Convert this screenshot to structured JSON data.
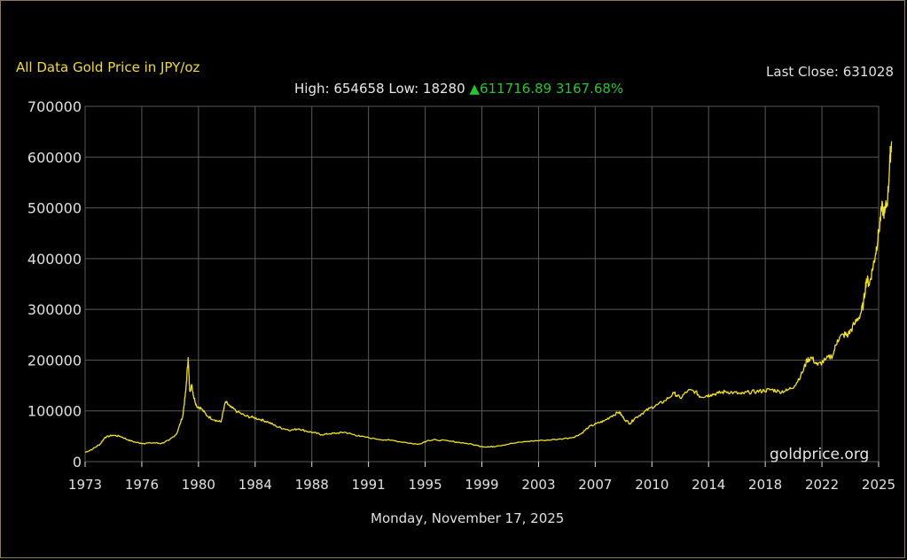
{
  "header": {
    "title": "All Data Gold Price in JPY/oz",
    "last_close": "Last Close: 631028",
    "high_label": "High:",
    "high_value": "654658",
    "low_label": "Low:",
    "low_value": "18280",
    "change_arrow": "▲",
    "change_abs": "611716.89",
    "change_pct": "3167.68%"
  },
  "watermark": "goldprice.org",
  "footer": {
    "date": "Monday, November 17, 2025"
  },
  "colors": {
    "line": "#f2e313",
    "title": "#f1dd2b",
    "up": "#22c82a",
    "grid": "#5a5a5a",
    "text": "#e0e0e0"
  },
  "chart_data": {
    "type": "line",
    "title": "All Data Gold Price in JPY/oz",
    "xlabel": "",
    "ylabel": "",
    "ylim": [
      0,
      700000
    ],
    "xlim": [
      1973,
      2025
    ],
    "grid": true,
    "legend": "none",
    "x_ticks": [
      "1973",
      "1976",
      "1980",
      "1984",
      "1988",
      "1991",
      "1995",
      "1999",
      "2003",
      "2007",
      "2010",
      "2014",
      "2018",
      "2022",
      "2025"
    ],
    "y_ticks": [
      "0",
      "100000",
      "200000",
      "300000",
      "400000",
      "500000",
      "600000",
      "700000"
    ],
    "series": [
      {
        "x": [
          1973.0,
          1973.5,
          1974.0,
          1974.3,
          1974.8,
          1975.3,
          1975.8,
          1976.3,
          1976.8,
          1977.5,
          1978.0,
          1978.5,
          1979.0,
          1979.4,
          1979.6,
          1979.75,
          1979.85,
          1980.0,
          1980.1,
          1980.3,
          1980.6,
          1981.0,
          1981.5,
          1981.9,
          1982.2,
          1982.5,
          1983.0,
          1983.5,
          1984.0,
          1984.5,
          1985.0,
          1985.5,
          1986.0,
          1986.5,
          1987.0,
          1987.5,
          1988.0,
          1988.5,
          1989.0,
          1989.5,
          1990.0,
          1990.5,
          1991.0,
          1992.0,
          1993.0,
          1994.0,
          1994.8,
          1995.5,
          1996.0,
          1997.0,
          1998.0,
          1999.0,
          1999.5,
          2000.0,
          2001.0,
          2002.0,
          2003.0,
          2004.0,
          2005.0,
          2005.5,
          2006.0,
          2006.5,
          2007.0,
          2007.5,
          2008.0,
          2008.3,
          2008.7,
          2009.0,
          2009.5,
          2010.0,
          2010.5,
          2011.0,
          2011.6,
          2012.0,
          2012.5,
          2013.0,
          2013.3,
          2013.7,
          2014.0,
          2014.5,
          2015.0,
          2015.5,
          2016.0,
          2016.5,
          2017.0,
          2017.5,
          2018.0,
          2018.5,
          2019.0,
          2019.5,
          2020.0,
          2020.3,
          2020.6,
          2021.0,
          2021.5,
          2022.0,
          2022.3,
          2022.7,
          2023.0,
          2023.4,
          2023.8,
          2024.0,
          2024.2,
          2024.4,
          2024.6,
          2024.8,
          2025.0,
          2025.2,
          2025.4,
          2025.6,
          2025.75,
          2025.85
        ],
        "y": [
          18280,
          25000,
          35000,
          48000,
          52000,
          50000,
          43000,
          38000,
          36000,
          37000,
          36000,
          42000,
          55000,
          90000,
          140000,
          205000,
          140000,
          150000,
          130000,
          110000,
          105000,
          90000,
          82000,
          78000,
          118000,
          108000,
          98000,
          90000,
          87000,
          83000,
          78000,
          70000,
          65000,
          62000,
          65000,
          60000,
          57000,
          53000,
          55000,
          56000,
          58000,
          54000,
          50000,
          45000,
          42000,
          38000,
          34000,
          42000,
          43000,
          40000,
          36000,
          30000,
          29000,
          31000,
          36000,
          40000,
          42000,
          44000,
          48000,
          55000,
          68000,
          75000,
          80000,
          90000,
          98000,
          85000,
          75000,
          85000,
          95000,
          105000,
          112000,
          120000,
          135000,
          125000,
          140000,
          138000,
          128000,
          130000,
          132000,
          135000,
          138000,
          136000,
          133000,
          137000,
          138000,
          140000,
          142000,
          138000,
          140000,
          150000,
          175000,
          200000,
          205000,
          190000,
          200000,
          210000,
          240000,
          250000,
          250000,
          270000,
          290000,
          310000,
          360000,
          350000,
          380000,
          410000,
          450000,
          500000,
          490000,
          520000,
          600000,
          631028
        ]
      }
    ],
    "annotations": [
      "High: 654658",
      "Low: 18280",
      "▲ 611716.89 3167.68%",
      "Last Close: 631028"
    ]
  }
}
